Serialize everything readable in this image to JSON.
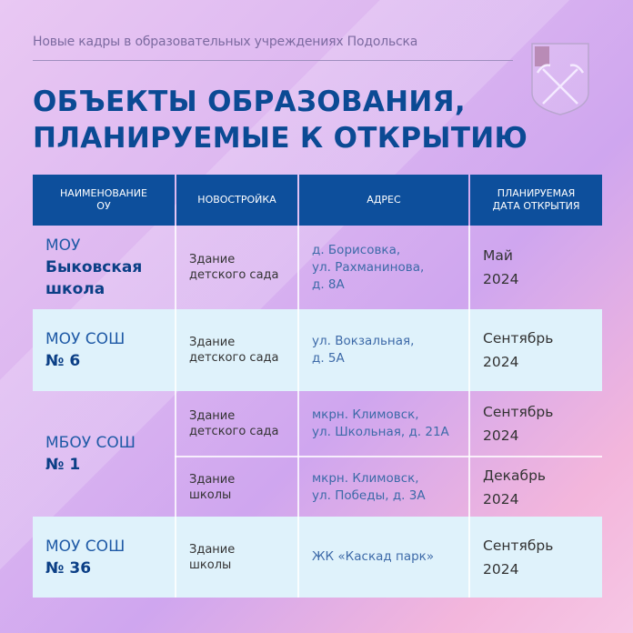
{
  "subtitle": "Новые кадры в образовательных учреждениях Подольска",
  "title": [
    "ОБЪЕКТЫ ОБРАЗОВАНИЯ,",
    "ПЛАНИРУЕМЫЕ К ОТКРЫТИЮ"
  ],
  "crest_icon": "podolsk-coat-of-arms-icon",
  "colors": {
    "header": "#0d4f9c",
    "title": "#0b4a94",
    "row_alt": "#dff2fb"
  },
  "headers": [
    [
      "НАИМЕНОВАНИЕ",
      "ОУ"
    ],
    [
      "НОВОСТРОЙКА"
    ],
    [
      "АДРЕС"
    ],
    [
      "ПЛАНИРУЕМАЯ",
      "ДАТА ОТКРЫТИЯ"
    ]
  ],
  "rows": [
    {
      "name": [
        "МОУ",
        "Быковская школа"
      ],
      "building": [
        "Здание",
        "детского сада"
      ],
      "address": [
        "д. Борисовка,",
        "ул. Рахманинова,",
        "д. 8А"
      ],
      "date": [
        "Май",
        "2024"
      ]
    },
    {
      "name": [
        "МОУ СОШ",
        "№ 6"
      ],
      "building": [
        "Здание",
        "детского сада"
      ],
      "address": [
        "ул. Вокзальная,",
        "д. 5А"
      ],
      "date": [
        "Сентябрь",
        "2024"
      ]
    },
    {
      "name": [
        "МБОУ СОШ",
        "№ 1"
      ],
      "building": [
        "Здание",
        "детского сада"
      ],
      "address": [
        "мкрн. Климовск,",
        "ул. Школьная, д. 21А"
      ],
      "date": [
        "Сентябрь",
        "2024"
      ]
    },
    {
      "building": [
        "Здание",
        "школы"
      ],
      "address": [
        "мкрн. Климовск,",
        "ул. Победы, д. 3А"
      ],
      "date": [
        "Декабрь",
        "2024"
      ]
    },
    {
      "name": [
        "МОУ СОШ",
        "№ 36"
      ],
      "building": [
        "Здание",
        "школы"
      ],
      "address": [
        "ЖК «Каскад парк»"
      ],
      "date": [
        "Сентябрь",
        "2024"
      ]
    }
  ]
}
